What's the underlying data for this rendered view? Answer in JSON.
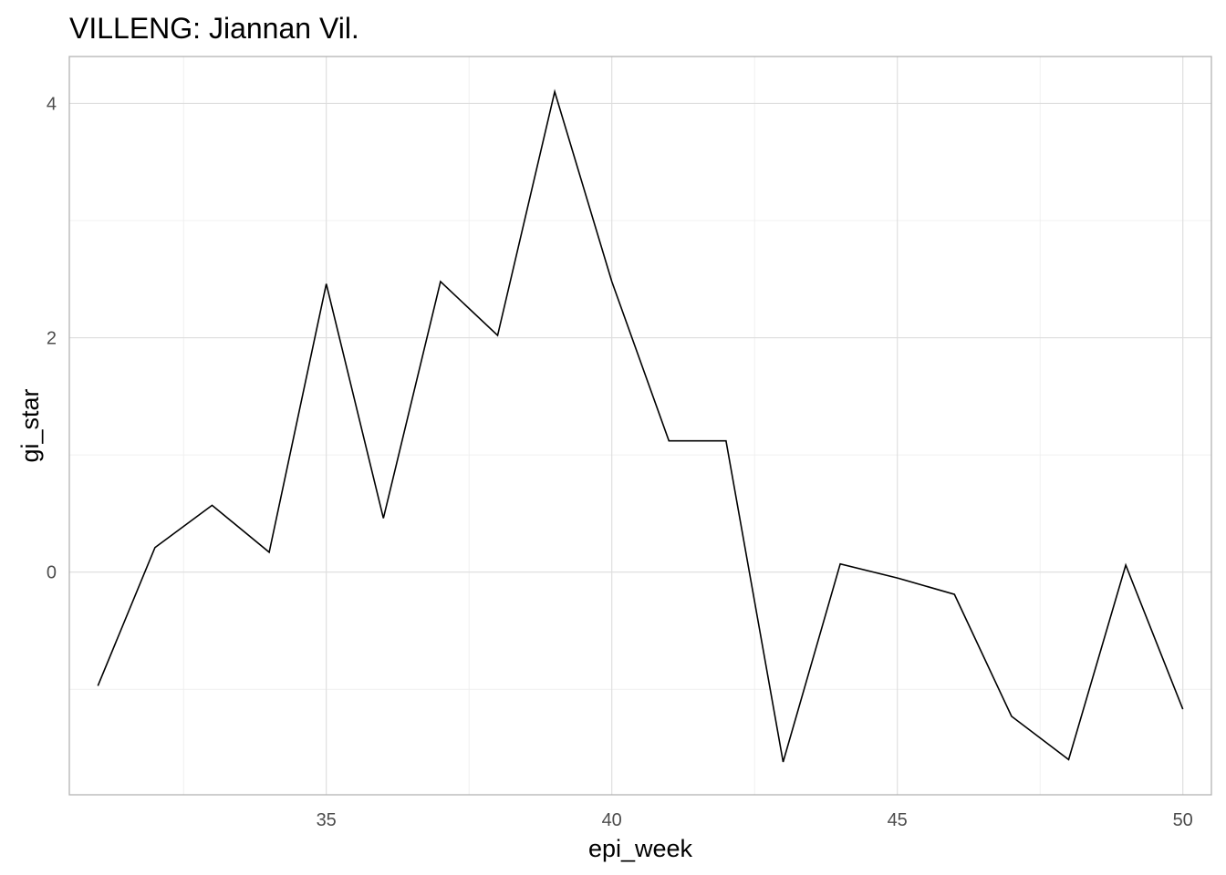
{
  "chart_data": {
    "type": "line",
    "title": "VILLENG: Jiannan Vil.",
    "xlabel": "epi_week",
    "ylabel": "gi_star",
    "xlim": [
      30.5,
      50.5
    ],
    "ylim": [
      -1.9,
      4.4
    ],
    "x_ticks": [
      35,
      40,
      45,
      50
    ],
    "x_tick_labels": [
      "35",
      "40",
      "45",
      "50"
    ],
    "x_minor_ticks": [
      32.5,
      37.5,
      42.5,
      47.5
    ],
    "y_ticks": [
      0,
      2,
      4
    ],
    "y_tick_labels": [
      "0",
      "2",
      "4"
    ],
    "y_minor_ticks": [
      -1,
      1,
      3
    ],
    "grid": true,
    "legend": "none",
    "series": [
      {
        "line_color": "#000000",
        "x": [
          31,
          32,
          33,
          34,
          35,
          36,
          37,
          38,
          39,
          40,
          41,
          42,
          43,
          44,
          45,
          46,
          47,
          48,
          49,
          50
        ],
        "y": [
          -0.97,
          0.21,
          0.57,
          0.17,
          2.46,
          0.46,
          2.48,
          2.02,
          4.1,
          2.48,
          1.12,
          1.12,
          -1.62,
          0.07,
          -0.05,
          -0.19,
          -1.23,
          -1.6,
          0.06,
          -1.17
        ]
      }
    ]
  }
}
